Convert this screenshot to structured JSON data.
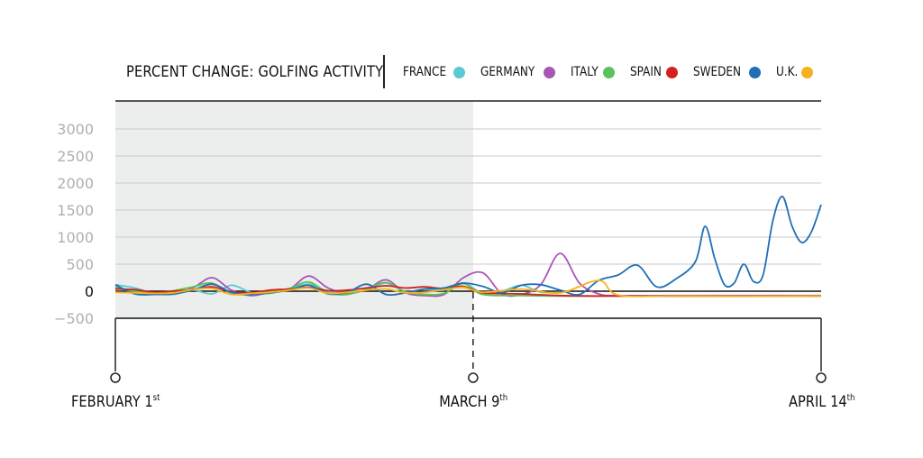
{
  "chart_data": {
    "type": "line",
    "title": "PERCENT CHANGE: GOLFING ACTIVITY",
    "xlabel": "",
    "ylabel": "",
    "ylim": [
      -500,
      3000
    ],
    "yticks": [
      3000,
      2500,
      2000,
      1500,
      1000,
      500,
      0,
      -500
    ],
    "xlim": [
      "2020-02-01",
      "2020-04-14"
    ],
    "grid": true,
    "legend_position": "top",
    "shaded_range": [
      "2020-02-01",
      "2020-03-09"
    ],
    "date_markers": [
      {
        "date": "2020-02-01",
        "label": "FEBRUARY 1",
        "suffix": "st"
      },
      {
        "date": "2020-03-09",
        "label": "MARCH 9",
        "suffix": "th"
      },
      {
        "date": "2020-04-14",
        "label": "APRIL 14",
        "suffix": "th"
      }
    ],
    "series": [
      {
        "name": "FRANCE",
        "color": "#5bc8d2",
        "points": [
          [
            "2020-02-01",
            120
          ],
          [
            "2020-02-03",
            60
          ],
          [
            "2020-02-05",
            -40
          ],
          [
            "2020-02-07",
            -60
          ],
          [
            "2020-02-09",
            20
          ],
          [
            "2020-02-11",
            -50
          ],
          [
            "2020-02-13",
            110
          ],
          [
            "2020-02-15",
            -20
          ],
          [
            "2020-02-17",
            -40
          ],
          [
            "2020-02-19",
            40
          ],
          [
            "2020-02-21",
            130
          ],
          [
            "2020-02-23",
            0
          ],
          [
            "2020-02-25",
            -20
          ],
          [
            "2020-02-27",
            20
          ],
          [
            "2020-02-29",
            150
          ],
          [
            "2020-03-02",
            -10
          ],
          [
            "2020-03-04",
            40
          ],
          [
            "2020-03-06",
            20
          ],
          [
            "2020-03-08",
            150
          ],
          [
            "2020-03-10",
            -40
          ],
          [
            "2020-03-12",
            0
          ],
          [
            "2020-03-14",
            110
          ],
          [
            "2020-03-16",
            -20
          ],
          [
            "2020-03-18",
            -20
          ]
        ]
      },
      {
        "name": "GERMANY",
        "color": "#a855b5",
        "points": [
          [
            "2020-02-01",
            60
          ],
          [
            "2020-02-03",
            0
          ],
          [
            "2020-02-05",
            -50
          ],
          [
            "2020-02-07",
            -40
          ],
          [
            "2020-02-09",
            60
          ],
          [
            "2020-02-11",
            250
          ],
          [
            "2020-02-13",
            20
          ],
          [
            "2020-02-15",
            -80
          ],
          [
            "2020-02-17",
            -20
          ],
          [
            "2020-02-19",
            40
          ],
          [
            "2020-02-21",
            280
          ],
          [
            "2020-02-23",
            60
          ],
          [
            "2020-02-25",
            -40
          ],
          [
            "2020-02-27",
            30
          ],
          [
            "2020-02-29",
            210
          ],
          [
            "2020-03-02",
            -30
          ],
          [
            "2020-03-04",
            -80
          ],
          [
            "2020-03-06",
            -60
          ],
          [
            "2020-03-08",
            250
          ],
          [
            "2020-03-10",
            340
          ],
          [
            "2020-03-12",
            -50
          ],
          [
            "2020-03-14",
            -60
          ],
          [
            "2020-03-16",
            120
          ],
          [
            "2020-03-18",
            700
          ],
          [
            "2020-03-20",
            150
          ],
          [
            "2020-03-22",
            -50
          ],
          [
            "2020-03-24",
            -80
          ],
          [
            "2020-03-30",
            -80
          ],
          [
            "2020-04-05",
            -80
          ],
          [
            "2020-04-14",
            -80
          ]
        ]
      },
      {
        "name": "ITALY",
        "color": "#5ac35a",
        "points": [
          [
            "2020-02-01",
            80
          ],
          [
            "2020-02-03",
            0
          ],
          [
            "2020-02-05",
            -30
          ],
          [
            "2020-02-07",
            10
          ],
          [
            "2020-02-09",
            80
          ],
          [
            "2020-02-11",
            150
          ],
          [
            "2020-02-13",
            -40
          ],
          [
            "2020-02-15",
            -60
          ],
          [
            "2020-02-17",
            -10
          ],
          [
            "2020-02-19",
            50
          ],
          [
            "2020-02-21",
            170
          ],
          [
            "2020-02-23",
            -30
          ],
          [
            "2020-02-25",
            -60
          ],
          [
            "2020-02-27",
            40
          ],
          [
            "2020-02-29",
            160
          ],
          [
            "2020-03-02",
            -10
          ],
          [
            "2020-03-04",
            -60
          ],
          [
            "2020-03-06",
            -40
          ],
          [
            "2020-03-08",
            140
          ],
          [
            "2020-03-10",
            -60
          ],
          [
            "2020-03-14",
            -80
          ],
          [
            "2020-03-18",
            -90
          ],
          [
            "2020-03-24",
            -90
          ],
          [
            "2020-04-14",
            -90
          ]
        ]
      },
      {
        "name": "SPAIN",
        "color": "#d32020",
        "points": [
          [
            "2020-02-01",
            40
          ],
          [
            "2020-02-03",
            30
          ],
          [
            "2020-02-05",
            -20
          ],
          [
            "2020-02-07",
            0
          ],
          [
            "2020-02-09",
            30
          ],
          [
            "2020-02-11",
            80
          ],
          [
            "2020-02-13",
            -10
          ],
          [
            "2020-02-15",
            -30
          ],
          [
            "2020-02-17",
            20
          ],
          [
            "2020-02-19",
            40
          ],
          [
            "2020-02-21",
            70
          ],
          [
            "2020-02-23",
            10
          ],
          [
            "2020-02-25",
            20
          ],
          [
            "2020-02-27",
            60
          ],
          [
            "2020-02-29",
            100
          ],
          [
            "2020-03-02",
            60
          ],
          [
            "2020-03-04",
            80
          ],
          [
            "2020-03-06",
            50
          ],
          [
            "2020-03-08",
            90
          ],
          [
            "2020-03-10",
            -30
          ],
          [
            "2020-03-14",
            -50
          ],
          [
            "2020-03-18",
            -80
          ],
          [
            "2020-03-24",
            -90
          ],
          [
            "2020-04-14",
            -90
          ]
        ]
      },
      {
        "name": "SWEDEN",
        "color": "#1f6fb5",
        "points": [
          [
            "2020-02-01",
            120
          ],
          [
            "2020-02-03",
            -50
          ],
          [
            "2020-02-05",
            -60
          ],
          [
            "2020-02-07",
            -50
          ],
          [
            "2020-02-09",
            20
          ],
          [
            "2020-02-11",
            130
          ],
          [
            "2020-02-13",
            -20
          ],
          [
            "2020-02-15",
            -60
          ],
          [
            "2020-02-17",
            -30
          ],
          [
            "2020-02-19",
            20
          ],
          [
            "2020-02-21",
            110
          ],
          [
            "2020-02-23",
            -50
          ],
          [
            "2020-02-25",
            -20
          ],
          [
            "2020-02-27",
            130
          ],
          [
            "2020-02-29",
            -60
          ],
          [
            "2020-03-02",
            -30
          ],
          [
            "2020-03-04",
            40
          ],
          [
            "2020-03-06",
            60
          ],
          [
            "2020-03-08",
            150
          ],
          [
            "2020-03-10",
            90
          ],
          [
            "2020-03-12",
            -30
          ],
          [
            "2020-03-14",
            110
          ],
          [
            "2020-03-16",
            120
          ],
          [
            "2020-03-18",
            20
          ],
          [
            "2020-03-20",
            -60
          ],
          [
            "2020-03-22",
            200
          ],
          [
            "2020-03-24",
            300
          ],
          [
            "2020-03-26",
            480
          ],
          [
            "2020-03-28",
            80
          ],
          [
            "2020-03-30",
            230
          ],
          [
            "2020-04-01",
            550
          ],
          [
            "2020-04-02",
            1200
          ],
          [
            "2020-04-03",
            600
          ],
          [
            "2020-04-04",
            120
          ],
          [
            "2020-04-05",
            150
          ],
          [
            "2020-04-06",
            500
          ],
          [
            "2020-04-07",
            180
          ],
          [
            "2020-04-08",
            300
          ],
          [
            "2020-04-09",
            1300
          ],
          [
            "2020-04-10",
            1750
          ],
          [
            "2020-04-11",
            1200
          ],
          [
            "2020-04-12",
            900
          ],
          [
            "2020-04-13",
            1100
          ],
          [
            "2020-04-14",
            1600
          ]
        ]
      },
      {
        "name": "U.K.",
        "color": "#f5b21e",
        "points": [
          [
            "2020-02-01",
            -20
          ],
          [
            "2020-02-03",
            -30
          ],
          [
            "2020-02-05",
            -40
          ],
          [
            "2020-02-07",
            -30
          ],
          [
            "2020-02-09",
            30
          ],
          [
            "2020-02-11",
            50
          ],
          [
            "2020-02-13",
            -60
          ],
          [
            "2020-02-15",
            -40
          ],
          [
            "2020-02-17",
            -20
          ],
          [
            "2020-02-19",
            20
          ],
          [
            "2020-02-21",
            60
          ],
          [
            "2020-02-23",
            -40
          ],
          [
            "2020-02-25",
            -20
          ],
          [
            "2020-02-27",
            20
          ],
          [
            "2020-02-29",
            40
          ],
          [
            "2020-03-02",
            -30
          ],
          [
            "2020-03-04",
            -20
          ],
          [
            "2020-03-06",
            30
          ],
          [
            "2020-03-08",
            70
          ],
          [
            "2020-03-10",
            -20
          ],
          [
            "2020-03-14",
            40
          ],
          [
            "2020-03-18",
            -30
          ],
          [
            "2020-03-22",
            200
          ],
          [
            "2020-03-24",
            -70
          ],
          [
            "2020-03-30",
            -90
          ],
          [
            "2020-04-14",
            -90
          ]
        ]
      }
    ]
  }
}
